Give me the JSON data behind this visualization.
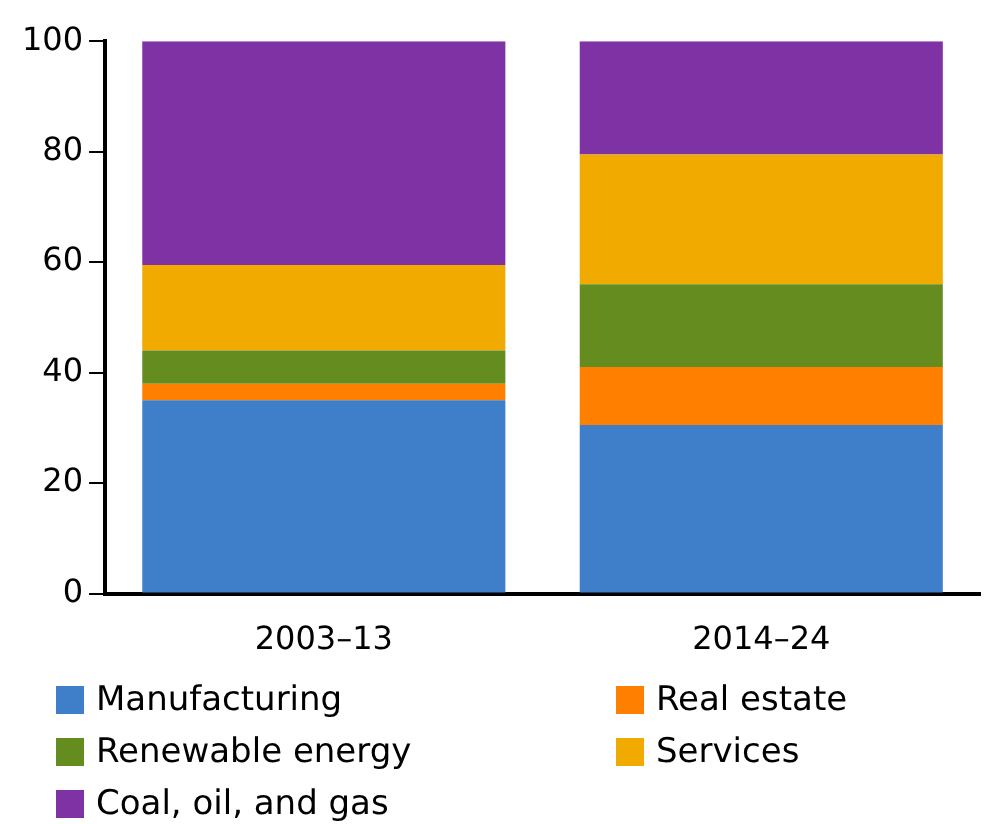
{
  "chart_data": {
    "type": "bar",
    "stacked": true,
    "categories": [
      "2003–13",
      "2014–24"
    ],
    "series": [
      {
        "name": "Manufacturing",
        "color": "#3f7fc9",
        "values": [
          35,
          30.5
        ]
      },
      {
        "name": "Real estate",
        "color": "#ff8000",
        "values": [
          3,
          10.5
        ]
      },
      {
        "name": "Renewable energy",
        "color": "#658c1e",
        "values": [
          6,
          15
        ]
      },
      {
        "name": "Services",
        "color": "#f0aa00",
        "values": [
          15.5,
          23.5
        ]
      },
      {
        "name": "Coal, oil, and gas",
        "color": "#7f32a3",
        "values": [
          40.5,
          20.5
        ]
      }
    ],
    "ylim": [
      0,
      100
    ],
    "yticks": [
      0,
      20,
      40,
      60,
      80,
      100
    ],
    "grid": false,
    "legend": "bottom"
  }
}
